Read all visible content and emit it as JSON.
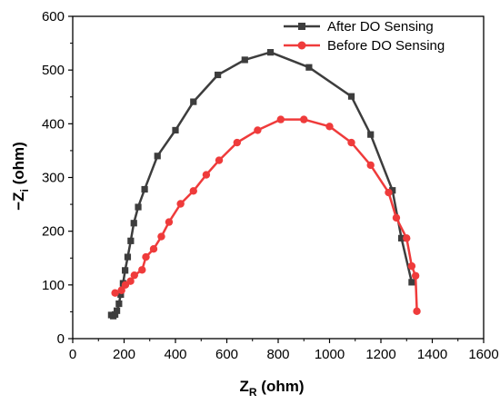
{
  "chart_data": {
    "type": "line",
    "xlabel": {
      "main": "Z",
      "sub": "R",
      "unit": " (ohm)"
    },
    "ylabel": {
      "prefix": "−Z",
      "sub": "i",
      "unit": " (ohm)"
    },
    "xlim": [
      0,
      1600
    ],
    "ylim": [
      0,
      600
    ],
    "xticks": [
      0,
      200,
      400,
      600,
      800,
      1000,
      1200,
      1400,
      1600
    ],
    "yticks": [
      0,
      100,
      200,
      300,
      400,
      500,
      600
    ],
    "grid": false,
    "legend_position": "top-right",
    "series": [
      {
        "name": "After DO Sensing",
        "color": "#3d3d3d",
        "marker": "square",
        "points": [
          [
            150,
            44
          ],
          [
            158,
            42
          ],
          [
            165,
            45
          ],
          [
            172,
            52
          ],
          [
            180,
            65
          ],
          [
            187,
            82
          ],
          [
            196,
            103
          ],
          [
            204,
            127
          ],
          [
            214,
            152
          ],
          [
            226,
            182
          ],
          [
            238,
            215
          ],
          [
            255,
            245
          ],
          [
            280,
            278
          ],
          [
            330,
            340
          ],
          [
            400,
            388
          ],
          [
            470,
            441
          ],
          [
            565,
            491
          ],
          [
            670,
            519
          ],
          [
            770,
            533
          ],
          [
            920,
            505
          ],
          [
            1085,
            451
          ],
          [
            1160,
            380
          ],
          [
            1245,
            276
          ],
          [
            1280,
            187
          ],
          [
            1320,
            105
          ]
        ]
      },
      {
        "name": "Before DO Sensing",
        "color": "#ef3b3b",
        "marker": "circle",
        "points": [
          [
            165,
            85
          ],
          [
            190,
            90
          ],
          [
            205,
            100
          ],
          [
            225,
            107
          ],
          [
            240,
            118
          ],
          [
            270,
            128
          ],
          [
            285,
            152
          ],
          [
            315,
            167
          ],
          [
            345,
            190
          ],
          [
            375,
            217
          ],
          [
            420,
            251
          ],
          [
            470,
            275
          ],
          [
            520,
            305
          ],
          [
            570,
            332
          ],
          [
            640,
            365
          ],
          [
            720,
            388
          ],
          [
            810,
            408
          ],
          [
            900,
            408
          ],
          [
            1000,
            395
          ],
          [
            1085,
            365
          ],
          [
            1160,
            323
          ],
          [
            1230,
            272
          ],
          [
            1260,
            225
          ],
          [
            1300,
            187
          ],
          [
            1320,
            135
          ],
          [
            1335,
            117
          ],
          [
            1340,
            51
          ]
        ]
      }
    ]
  }
}
